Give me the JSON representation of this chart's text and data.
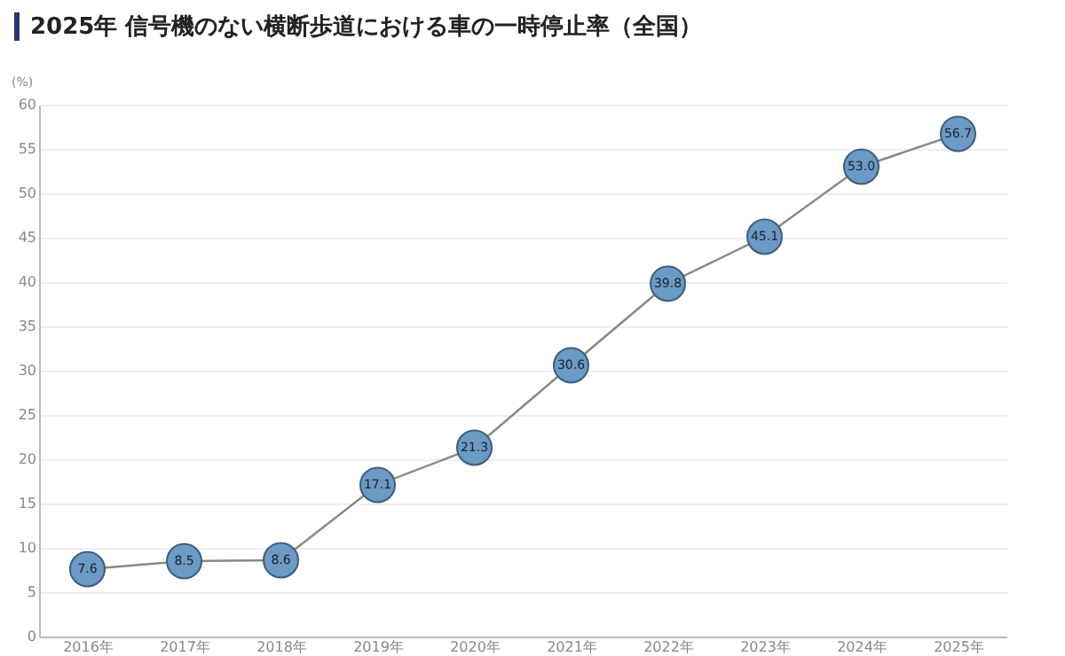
{
  "chart_data": {
    "type": "line",
    "title": "2025年 信号機のない横断歩道における車の一時停止率（全国）",
    "ylabel": "(%)",
    "categories": [
      "2016年",
      "2017年",
      "2018年",
      "2019年",
      "2020年",
      "2021年",
      "2022年",
      "2023年",
      "2024年",
      "2025年"
    ],
    "series": [
      {
        "color": "#6b9ac4",
        "values": [
          7.6,
          8.5,
          8.6,
          17.1,
          21.3,
          30.6,
          39.8,
          45.1,
          53.0,
          56.7
        ]
      }
    ],
    "ylim": [
      0,
      60
    ],
    "yticks": [
      0,
      5,
      10,
      15,
      20,
      25,
      30,
      35,
      40,
      45,
      50,
      55,
      60
    ],
    "value_labels": [
      "7.6",
      "8.5",
      "8.6",
      "17.1",
      "21.3",
      "30.6",
      "39.8",
      "45.1",
      "53.0",
      "56.7"
    ],
    "grid": "y",
    "marker": "circle"
  }
}
